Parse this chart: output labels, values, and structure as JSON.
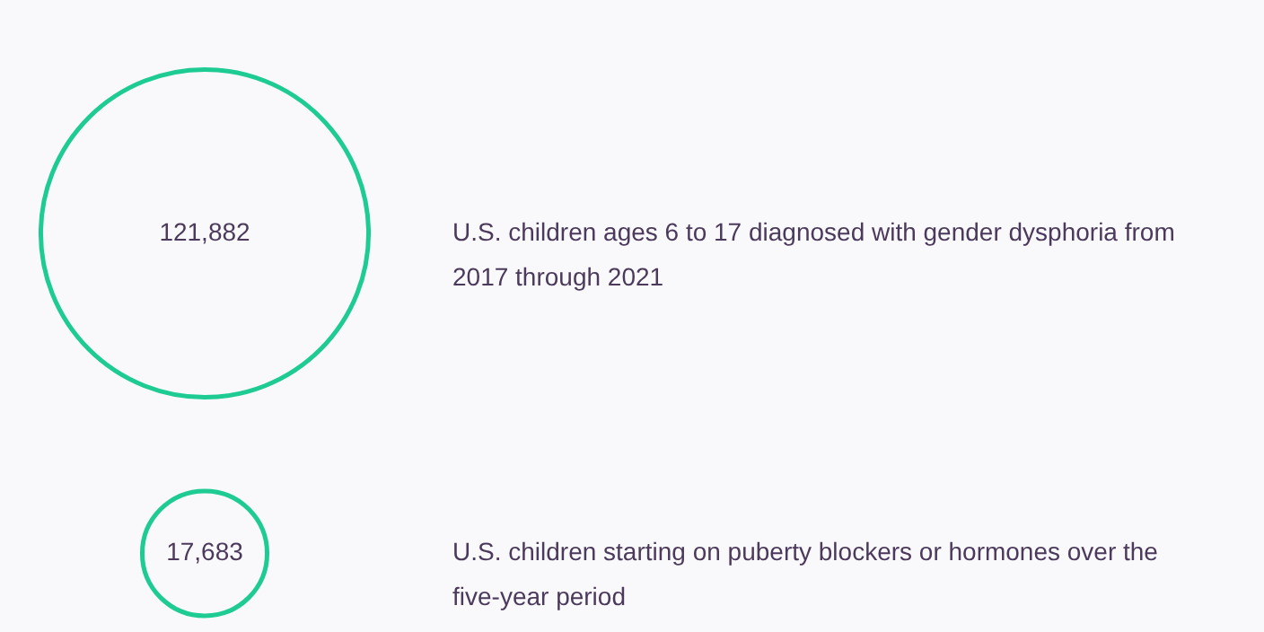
{
  "chart_data": {
    "type": "other",
    "categories": [
      "U.S. children ages 6 to 17 diagnosed with gender dysphoria from 2017 through 2021",
      "U.S. children starting on puberty blockers or hormones over the five-year period"
    ],
    "values": [
      121882,
      17683
    ],
    "color": "#1ecb92",
    "value_labels": [
      "121,882",
      "17,683"
    ]
  }
}
